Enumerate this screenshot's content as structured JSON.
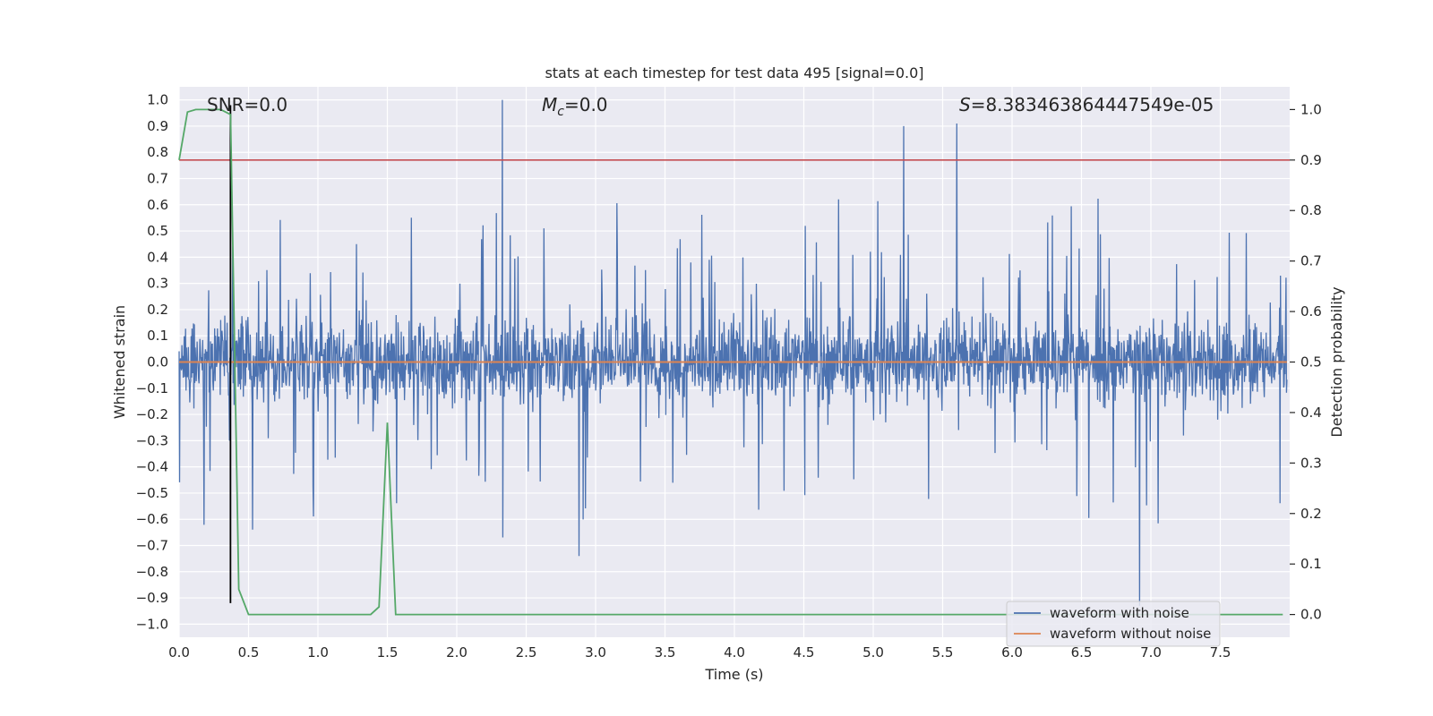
{
  "chart_data": {
    "type": "line",
    "title": "stats at each timestep for test data 495 [signal=0.0]",
    "xlabel": "Time (s)",
    "ylabel_left": "Whitened strain",
    "ylabel_right": "Detection probability",
    "xlim": [
      0.0,
      8.0
    ],
    "ylim_left": [
      -1.05,
      1.05
    ],
    "ylim_right": [
      -0.045,
      1.045
    ],
    "x_ticks": [
      "0.0",
      "0.5",
      "1.0",
      "1.5",
      "2.0",
      "2.5",
      "3.0",
      "3.5",
      "4.0",
      "4.5",
      "5.0",
      "5.5",
      "6.0",
      "6.5",
      "7.0",
      "7.5"
    ],
    "y_left_ticks": [
      "1.0",
      "0.9",
      "0.8",
      "0.7",
      "0.6",
      "0.5",
      "0.4",
      "0.3",
      "0.2",
      "0.1",
      "0.0",
      "−0.1",
      "−0.2",
      "−0.3",
      "−0.4",
      "−0.5",
      "−0.6",
      "−0.7",
      "−0.8",
      "−0.9",
      "−1.0"
    ],
    "y_right_ticks": [
      "1.0",
      "0.9",
      "0.8",
      "0.7",
      "0.6",
      "0.5",
      "0.4",
      "0.3",
      "0.2",
      "0.1",
      "0.0"
    ],
    "grid": true,
    "legend_position": "lower-right",
    "annotations": {
      "snr_label": "SNR=0.0",
      "mc_prefix": "M",
      "mc_sub": "c",
      "mc_suffix": "=0.0",
      "s_prefix": "S",
      "s_suffix": "=8.383463864447549e-05"
    },
    "series": [
      {
        "name": "waveform with noise",
        "color": "#4c72b0",
        "axis": "left",
        "description": "whitened noisy strain, approx range -0.75 to 1.0 with occasional spikes",
        "spikes": [
          {
            "x": 2.33,
            "y": 1.0
          },
          {
            "x": 5.22,
            "y": 0.9
          },
          {
            "x": 5.6,
            "y": 0.91
          },
          {
            "x": 6.92,
            "y": -0.93
          },
          {
            "x": 2.88,
            "y": -0.74
          }
        ]
      },
      {
        "name": "waveform without noise",
        "color": "#dd8452",
        "axis": "left",
        "x": [
          0.0,
          7.98
        ],
        "y": [
          0.0,
          0.0
        ]
      },
      {
        "name": "detection probability",
        "color": "#55a868",
        "axis": "right",
        "x": [
          0.0,
          0.06,
          0.12,
          0.3,
          0.37,
          0.43,
          0.5,
          1.38,
          1.44,
          1.5,
          1.56,
          1.6,
          7.95
        ],
        "y": [
          0.9,
          0.995,
          1.0,
          1.0,
          0.99,
          0.05,
          0.0,
          0.0,
          0.015,
          0.38,
          0.0,
          0.0,
          0.0
        ]
      }
    ],
    "threshold": {
      "axis": "right",
      "value": 0.9,
      "color": "#c44e52"
    },
    "marker_line": {
      "x": 0.37,
      "y_left_range": [
        -0.92,
        0.98
      ],
      "color": "#000000"
    }
  }
}
